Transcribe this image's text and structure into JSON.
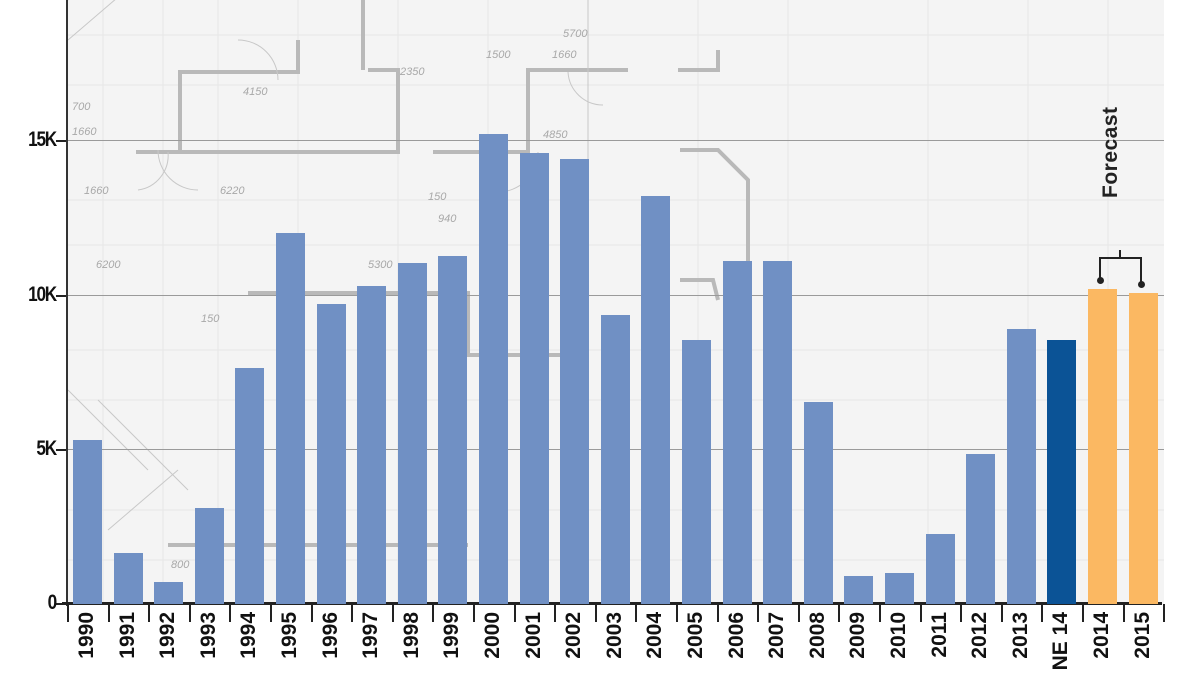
{
  "chart_data": {
    "type": "bar",
    "title": "",
    "xlabel": "",
    "ylabel": "",
    "ylim": [
      0,
      19500
    ],
    "yticks": [
      {
        "value": 0,
        "label": "0"
      },
      {
        "value": 5000,
        "label": "5K"
      },
      {
        "value": 10000,
        "label": "10K"
      },
      {
        "value": 15000,
        "label": "15K"
      }
    ],
    "grid": true,
    "categories": [
      "1990",
      "1991",
      "1992",
      "1993",
      "1994",
      "1995",
      "1996",
      "1997",
      "1998",
      "1999",
      "2000",
      "2001",
      "2002",
      "2003",
      "2004",
      "2005",
      "2006",
      "2007",
      "2008",
      "2009",
      "2010",
      "2011",
      "2012",
      "2013",
      "NE 14",
      "2014",
      "2015"
    ],
    "values": [
      5300,
      1650,
      700,
      3100,
      7650,
      12000,
      9700,
      10300,
      11050,
      11250,
      15200,
      14600,
      14400,
      9350,
      13200,
      8550,
      11100,
      11100,
      6550,
      900,
      1000,
      2250,
      4850,
      8900,
      8550,
      10200,
      10050
    ],
    "bar_types": [
      "actual",
      "actual",
      "actual",
      "actual",
      "actual",
      "actual",
      "actual",
      "actual",
      "actual",
      "actual",
      "actual",
      "actual",
      "actual",
      "actual",
      "actual",
      "actual",
      "actual",
      "actual",
      "actual",
      "actual",
      "actual",
      "actual",
      "actual",
      "actual",
      "highlight",
      "forecast",
      "forecast"
    ],
    "colors": {
      "actual": "#7090c4",
      "highlight": "#0b5396",
      "forecast": "#fbb862"
    },
    "annotations": [
      {
        "text": "Forecast",
        "applies_to": [
          "2014",
          "2015"
        ]
      }
    ],
    "background": "architectural blueprint drawing"
  },
  "annotation": {
    "forecast_label": "Forecast"
  }
}
